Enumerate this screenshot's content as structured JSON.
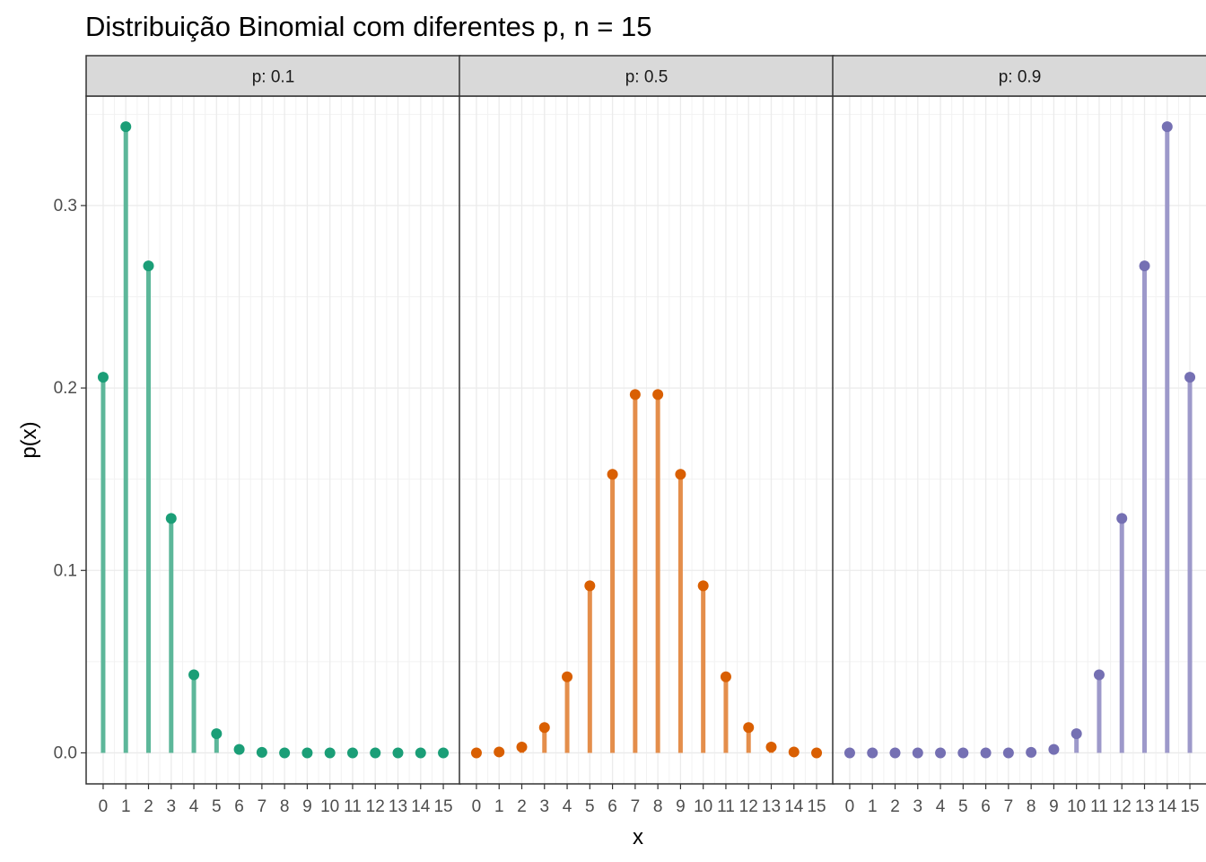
{
  "chart_data": {
    "type": "lollipop",
    "title": "Distribuição Binomial com diferentes p, n = 15",
    "xlabel": "x",
    "ylabel": "p(x)",
    "x": [
      0,
      1,
      2,
      3,
      4,
      5,
      6,
      7,
      8,
      9,
      10,
      11,
      12,
      13,
      14,
      15
    ],
    "x_tick_labels": [
      "0",
      "1",
      "2",
      "3",
      "4",
      "5",
      "6",
      "7",
      "8",
      "9",
      "10",
      "11",
      "12",
      "13",
      "14",
      "15"
    ],
    "ylim": [
      -0.017,
      0.36
    ],
    "y_ticks": [
      0.0,
      0.1,
      0.2,
      0.3
    ],
    "y_tick_labels": [
      "0.0",
      "0.1",
      "0.2",
      "0.3"
    ],
    "grid": true,
    "legend": "none",
    "panels": [
      {
        "label": "p: 0.1",
        "color": "#1B9E77",
        "line_color": "#5DB79A",
        "values": [
          0.2059,
          0.3432,
          0.2669,
          0.1285,
          0.0428,
          0.0105,
          0.0019,
          0.0003,
          0.0,
          0.0,
          0.0,
          0.0,
          0.0,
          0.0,
          0.0,
          0.0
        ]
      },
      {
        "label": "p: 0.5",
        "color": "#D95F02",
        "line_color": "#E48E4B",
        "values": [
          0.0,
          0.0005,
          0.0032,
          0.0139,
          0.0417,
          0.0916,
          0.1527,
          0.1964,
          0.1964,
          0.1527,
          0.0916,
          0.0417,
          0.0139,
          0.0032,
          0.0005,
          0.0
        ]
      },
      {
        "label": "p: 0.9",
        "color": "#7570B3",
        "line_color": "#9D99CA",
        "values": [
          0.0,
          0.0,
          0.0,
          0.0,
          0.0,
          0.0,
          0.0,
          0.0,
          0.0003,
          0.0019,
          0.0105,
          0.0428,
          0.1285,
          0.2669,
          0.3432,
          0.2059
        ]
      }
    ]
  }
}
